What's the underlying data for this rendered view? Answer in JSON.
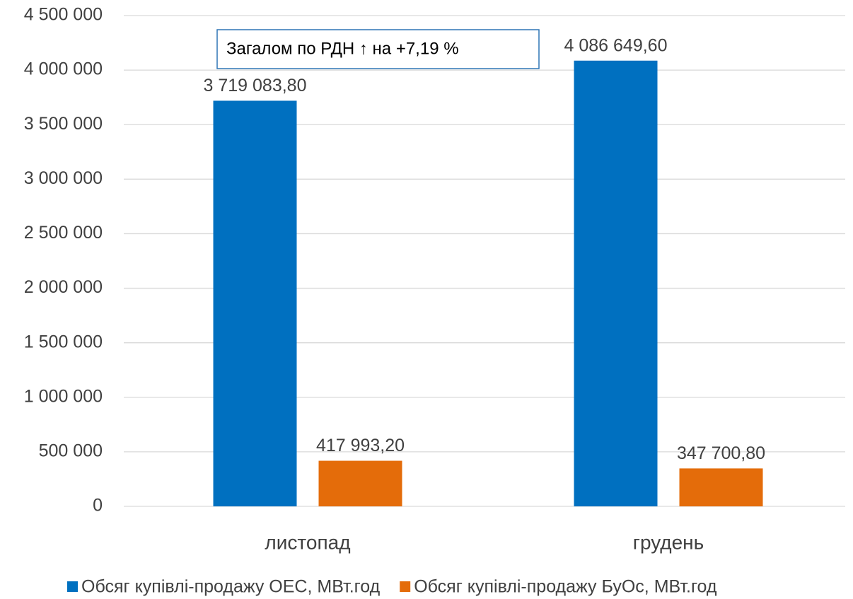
{
  "chart_data": {
    "type": "bar",
    "categories": [
      "листопад",
      "грудень"
    ],
    "series": [
      {
        "name": "Обсяг купівлі-продажу ОЕС, МВт.год",
        "color": "#0070c0",
        "values": [
          3719083.8,
          4086649.6
        ],
        "value_labels": [
          "3 719 083,80",
          "4 086 649,60"
        ]
      },
      {
        "name": "Обсяг купівлі-продажу БуОс, МВт.год",
        "color": "#e46c0a",
        "values": [
          417993.2,
          347700.8
        ],
        "value_labels": [
          "417 993,20",
          "347 700,80"
        ]
      }
    ],
    "annotation": "Загалом по РДН ↑ на +7,19 %",
    "ylim": [
      0,
      4500000
    ],
    "yticks": [
      0,
      {
        "value": 500000,
        "label": "500 000"
      },
      {
        "value": 1000000,
        "label": "1 000 000"
      },
      {
        "value": 1500000,
        "label": "1 500 000"
      },
      {
        "value": 2000000,
        "label": "2 000 000"
      },
      {
        "value": 2500000,
        "label": "2 500 000"
      },
      {
        "value": 3000000,
        "label": "3 000 000"
      },
      {
        "value": 3500000,
        "label": "3 500 000"
      },
      {
        "value": 4000000,
        "label": "4 000 000"
      },
      {
        "value": 4500000,
        "label": "4 500 000"
      }
    ],
    "grid": true,
    "legend": "bottom"
  }
}
